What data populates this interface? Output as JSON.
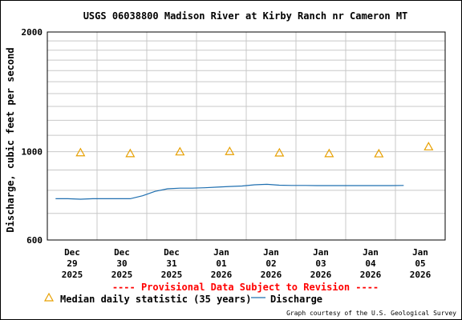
{
  "chart_data": {
    "type": "line",
    "title": "USGS 06038800 Madison River at Kirby Ranch nr Cameron MT",
    "ylabel": "Discharge, cubic feet per second",
    "y_scale": "log",
    "ylim": [
      600,
      2000
    ],
    "y_ticks": [
      "600",
      "1000",
      "2000"
    ],
    "x_ticks": [
      {
        "lines": [
          "Dec",
          "29",
          "2025"
        ]
      },
      {
        "lines": [
          "Dec",
          "30",
          "2025"
        ]
      },
      {
        "lines": [
          "Dec",
          "31",
          "2025"
        ]
      },
      {
        "lines": [
          "Jan",
          "01",
          "2026"
        ]
      },
      {
        "lines": [
          "Jan",
          "02",
          "2026"
        ]
      },
      {
        "lines": [
          "Jan",
          "03",
          "2026"
        ]
      },
      {
        "lines": [
          "Jan",
          "04",
          "2026"
        ]
      },
      {
        "lines": [
          "Jan",
          "05",
          "2026"
        ]
      }
    ],
    "grid": true,
    "series": [
      {
        "name": "Median daily statistic (35 years)",
        "marker": "triangle",
        "color": "#e8a000",
        "x": [
          "2025-12-29 12:00",
          "2025-12-30 12:00",
          "2025-12-31 12:00",
          "2026-01-01 12:00",
          "2026-01-02 12:00",
          "2026-01-03 12:00",
          "2026-01-04 12:00",
          "2026-01-05 12:00"
        ],
        "values": [
          995,
          990,
          1000,
          1002,
          994,
          990,
          989,
          1030
        ]
      },
      {
        "name": "Discharge",
        "color": "#1f6fb0",
        "x": [
          "2025-12-29 00:00",
          "2025-12-29 06:00",
          "2025-12-29 12:00",
          "2025-12-29 18:00",
          "2025-12-30 00:00",
          "2025-12-30 06:00",
          "2025-12-30 12:00",
          "2025-12-30 18:00",
          "2025-12-31 00:00",
          "2025-12-31 06:00",
          "2025-12-31 12:00",
          "2025-12-31 18:00",
          "2026-01-01 00:00",
          "2026-01-01 06:00",
          "2026-01-01 12:00",
          "2026-01-01 18:00",
          "2026-01-02 00:00",
          "2026-01-02 06:00",
          "2026-01-02 12:00",
          "2026-01-02 18:00",
          "2026-01-03 00:00",
          "2026-01-03 06:00",
          "2026-01-03 12:00",
          "2026-01-03 18:00",
          "2026-01-04 00:00",
          "2026-01-04 06:00",
          "2026-01-04 12:00",
          "2026-01-04 18:00",
          "2026-01-05 00:00"
        ],
        "values": [
          762,
          762,
          760,
          762,
          762,
          762,
          762,
          775,
          795,
          807,
          810,
          810,
          812,
          815,
          818,
          820,
          826,
          828,
          824,
          823,
          823,
          822,
          822,
          822,
          822,
          822,
          822,
          822,
          823
        ]
      }
    ]
  },
  "provisional_note": "---- Provisional Data Subject to Revision ----",
  "legend": {
    "median_label": "Median daily statistic (35 years)",
    "discharge_label": "Discharge"
  },
  "credit": "Graph courtesy of the U.S. Geological Survey",
  "colors": {
    "median": "#e8a000",
    "discharge": "#1f6fb0",
    "provisional": "#ff0000",
    "grid": "#c8c8c8"
  }
}
